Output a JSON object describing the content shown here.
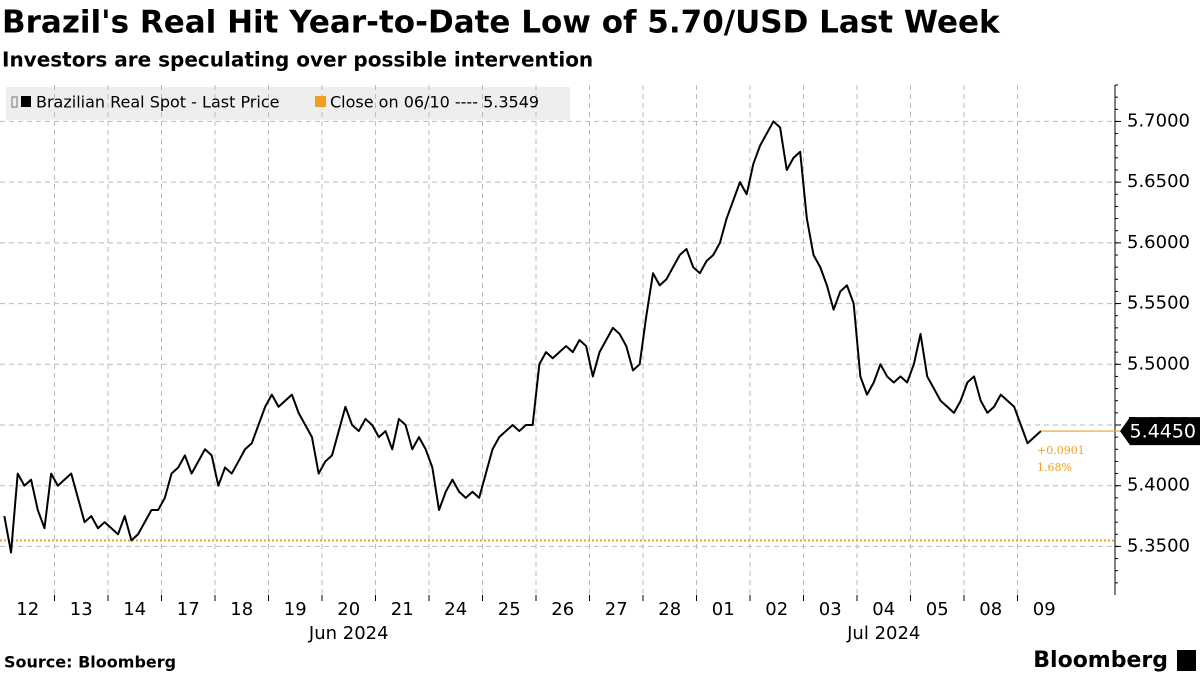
{
  "chart_data": {
    "type": "line",
    "title": "Brazil's Real Hit Year-to-Date Low of 5.70/USD Last Week",
    "subtitle": "Investors are speculating over possible intervention",
    "source": "Source: Bloomberg",
    "brand": "Bloomberg",
    "categories": [
      null,
      null,
      null,
      null,
      "12",
      null,
      null,
      null,
      null,
      null,
      null,
      null,
      "13",
      null,
      null,
      null,
      null,
      null,
      null,
      null,
      "14",
      null,
      null,
      null,
      null,
      null,
      null,
      null,
      "17",
      null,
      null,
      null,
      null,
      null,
      null,
      null,
      "18",
      null,
      null,
      null,
      null,
      null,
      null,
      null,
      "19",
      null,
      null,
      null,
      null,
      null,
      null,
      null,
      "20",
      null,
      null,
      null,
      null,
      null,
      null,
      null,
      "21",
      null,
      null,
      null,
      null,
      null,
      null,
      null,
      "24",
      null,
      null,
      null,
      null,
      null,
      null,
      null,
      "25",
      null,
      null,
      null,
      null,
      null,
      null,
      null,
      "26",
      null,
      null,
      null,
      null,
      null,
      null,
      null,
      "27",
      null,
      null,
      null,
      null,
      null,
      null,
      null,
      "28",
      null,
      null,
      null,
      null,
      null,
      null,
      null,
      "01",
      null,
      null,
      null,
      null,
      null,
      null,
      null,
      "02",
      null,
      null,
      null,
      null,
      null,
      null,
      null,
      "03",
      null,
      null,
      null,
      null,
      null,
      null,
      null,
      "04",
      null,
      null,
      null,
      null,
      null,
      null,
      null,
      "05",
      null,
      null,
      null,
      null,
      null,
      null,
      null,
      "08",
      null,
      null,
      null,
      null,
      null,
      null,
      "09"
    ],
    "month_labels": [
      "Jun 2024",
      "Jul 2024"
    ],
    "series": [
      {
        "name": "Brazilian Real Spot - Last Price",
        "color": "#000000",
        "values": [
          5.375,
          5.345,
          5.41,
          5.4,
          5.405,
          5.38,
          5.365,
          5.41,
          5.4,
          5.405,
          5.41,
          5.39,
          5.37,
          5.375,
          5.365,
          5.37,
          5.365,
          5.36,
          5.375,
          5.355,
          5.36,
          5.37,
          5.38,
          5.38,
          5.39,
          5.41,
          5.415,
          5.425,
          5.41,
          5.42,
          5.43,
          5.425,
          5.4,
          5.415,
          5.41,
          5.42,
          5.43,
          5.435,
          5.45,
          5.465,
          5.475,
          5.465,
          5.47,
          5.475,
          5.46,
          5.45,
          5.44,
          5.41,
          5.42,
          5.425,
          5.445,
          5.465,
          5.45,
          5.445,
          5.455,
          5.45,
          5.44,
          5.445,
          5.43,
          5.455,
          5.45,
          5.43,
          5.44,
          5.43,
          5.415,
          5.38,
          5.395,
          5.405,
          5.395,
          5.39,
          5.395,
          5.39,
          5.41,
          5.43,
          5.44,
          5.445,
          5.45,
          5.445,
          5.45,
          5.45,
          5.5,
          5.51,
          5.505,
          5.51,
          5.515,
          5.51,
          5.52,
          5.515,
          5.49,
          5.51,
          5.52,
          5.53,
          5.525,
          5.515,
          5.495,
          5.5,
          5.54,
          5.575,
          5.565,
          5.57,
          5.58,
          5.59,
          5.595,
          5.58,
          5.575,
          5.585,
          5.59,
          5.6,
          5.62,
          5.635,
          5.65,
          5.64,
          5.665,
          5.68,
          5.69,
          5.7,
          5.695,
          5.66,
          5.67,
          5.675,
          5.62,
          5.59,
          5.58,
          5.565,
          5.545,
          5.56,
          5.565,
          5.55,
          5.49,
          5.475,
          5.485,
          5.5,
          5.49,
          5.485,
          5.49,
          5.485,
          5.5,
          5.525,
          5.49,
          5.48,
          5.47,
          5.465,
          5.46,
          5.47,
          5.485,
          5.49,
          5.47,
          5.46,
          5.465,
          5.475,
          5.47,
          5.465,
          5.45,
          5.435,
          5.44,
          5.445
        ]
      }
    ],
    "last_price_label": "5.4450",
    "reference_line": {
      "name": "Close on 06/10 ---- 5.3549",
      "value": 5.3549,
      "color": "#f0a020"
    },
    "annotations": [
      "+0.0901",
      "1.68%"
    ],
    "ylim": [
      5.31,
      5.73
    ],
    "yticks": [
      {
        "value": 5.35,
        "label": "5.3500"
      },
      {
        "value": 5.4,
        "label": "5.4000"
      },
      {
        "value": 5.45,
        "label": "5.4500"
      },
      {
        "value": 5.5,
        "label": "5.5000"
      },
      {
        "value": 5.55,
        "label": "5.5500"
      },
      {
        "value": 5.6,
        "label": "5.6000"
      },
      {
        "value": 5.65,
        "label": "5.6500"
      },
      {
        "value": 5.7,
        "label": "5.7000"
      }
    ],
    "grid": true
  }
}
